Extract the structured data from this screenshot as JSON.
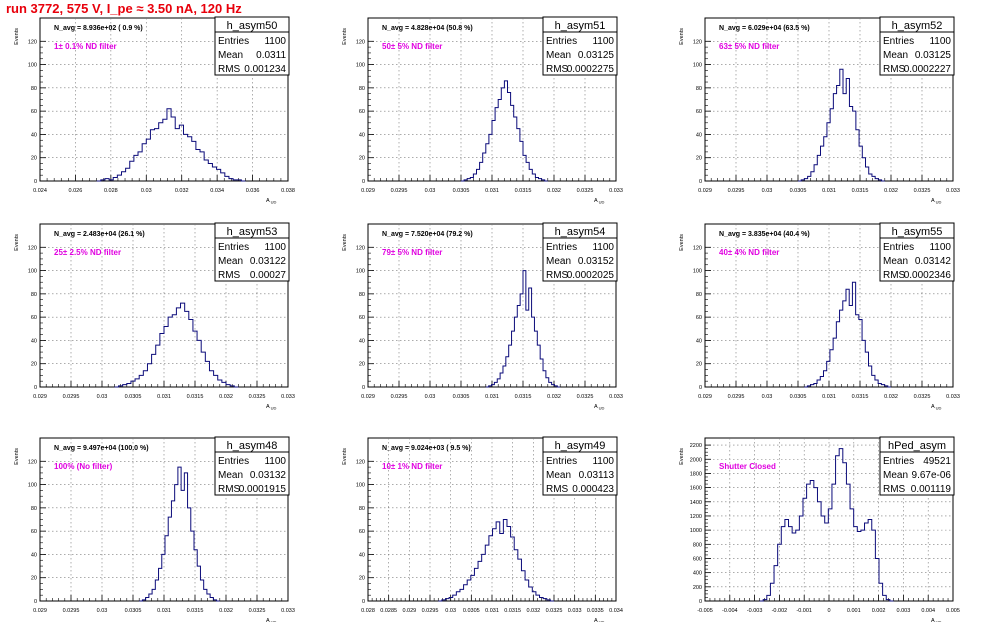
{
  "page_title": "run 3772,   575 V, I_pe ≈ 3.50 nA, 120 Hz",
  "colors": {
    "hist": "#0b0b7a",
    "magenta": "#e000e0",
    "title": "#e8000b",
    "grid": "#7a7a7a"
  },
  "stats_labels": {
    "entries": "Entries",
    "mean": "Mean",
    "rms": "RMS"
  },
  "xlabel": "A_UD",
  "ylabel": "Events",
  "chart_data": [
    {
      "type": "bar",
      "name": "h_asym50",
      "navg": "N_avg = 8.936e+02 ( 0.9 %)",
      "filter": "1± 0.1% ND filter",
      "entries": "1100",
      "mean": "0.0311",
      "rms": "0.001234",
      "xlim": [
        0.024,
        0.038
      ],
      "ylim": [
        0,
        140
      ],
      "xticks": [
        0.024,
        0.026,
        0.028,
        0.03,
        0.032,
        0.034,
        0.036,
        0.038
      ],
      "xtick_labels": [
        "0.024",
        "0.026",
        "0.028",
        "0.03",
        "0.032",
        "0.034",
        "0.036",
        "0.038"
      ],
      "yticks": [
        0,
        20,
        40,
        60,
        80,
        100,
        120
      ],
      "yvals": [
        0,
        1,
        2,
        1,
        3,
        5,
        8,
        11,
        17,
        22,
        25,
        32,
        36,
        44,
        45,
        50,
        53,
        62,
        55,
        45,
        48,
        40,
        38,
        34,
        27,
        25,
        18,
        15,
        12,
        10,
        7,
        4,
        2,
        1,
        1,
        0
      ],
      "xrange": [
        0.0272,
        0.0356
      ]
    },
    {
      "type": "bar",
      "name": "h_asym51",
      "navg": "N_avg = 4.828e+04 (50.8 %)",
      "filter": "50± 5% ND filter",
      "entries": "1100",
      "mean": "0.03125",
      "rms": "0.0002275",
      "xlim": [
        0.029,
        0.033
      ],
      "ylim": [
        0,
        140
      ],
      "xticks": [
        0.029,
        0.0295,
        0.03,
        0.0305,
        0.031,
        0.0315,
        0.032,
        0.0325,
        0.033
      ],
      "xtick_labels": [
        "0.029",
        "0.0295",
        "0.03",
        "0.0305",
        "0.031",
        "0.0315",
        "0.032",
        "0.0325",
        "0.033"
      ],
      "yticks": [
        0,
        20,
        40,
        60,
        80,
        100,
        120
      ],
      "yvals": [
        0,
        1,
        2,
        3,
        6,
        10,
        16,
        24,
        32,
        40,
        52,
        63,
        70,
        80,
        86,
        76,
        65,
        55,
        45,
        34,
        22,
        16,
        10,
        6,
        3,
        2,
        1,
        0
      ],
      "xrange": [
        0.0305,
        0.0319
      ]
    },
    {
      "type": "bar",
      "name": "h_asym52",
      "navg": "N_avg = 6.029e+04 (63.5 %)",
      "filter": "63± 5% ND filter",
      "entries": "1100",
      "mean": "0.03125",
      "rms": "0.0002227",
      "xlim": [
        0.029,
        0.033
      ],
      "ylim": [
        0,
        140
      ],
      "xticks": [
        0.029,
        0.0295,
        0.03,
        0.0305,
        0.031,
        0.0315,
        0.032,
        0.0325,
        0.033
      ],
      "xtick_labels": [
        "0.029",
        "0.0295",
        "0.03",
        "0.0305",
        "0.031",
        "0.0315",
        "0.032",
        "0.0325",
        "0.033"
      ],
      "yticks": [
        0,
        20,
        40,
        60,
        80,
        100,
        120
      ],
      "yvals": [
        0,
        1,
        2,
        4,
        8,
        14,
        22,
        30,
        38,
        50,
        62,
        75,
        82,
        96,
        75,
        88,
        64,
        60,
        44,
        30,
        20,
        12,
        6,
        4,
        2,
        1,
        0
      ],
      "xrange": [
        0.0305,
        0.0319
      ]
    },
    {
      "type": "bar",
      "name": "h_asym53",
      "navg": "N_avg = 2.483e+04 (26.1 %)",
      "filter": "25± 2.5% ND filter",
      "entries": "1100",
      "mean": "0.03122",
      "rms": "0.00027",
      "xlim": [
        0.029,
        0.033
      ],
      "ylim": [
        0,
        140
      ],
      "xticks": [
        0.029,
        0.0295,
        0.03,
        0.0305,
        0.031,
        0.0315,
        0.032,
        0.0325,
        0.033
      ],
      "xtick_labels": [
        "0.029",
        "0.0295",
        "0.03",
        "0.0305",
        "0.031",
        "0.0315",
        "0.032",
        "0.0325",
        "0.033"
      ],
      "yticks": [
        0,
        20,
        40,
        60,
        80,
        100,
        120
      ],
      "yvals": [
        0,
        1,
        2,
        3,
        5,
        7,
        10,
        14,
        20,
        28,
        36,
        46,
        52,
        60,
        62,
        68,
        72,
        65,
        58,
        48,
        40,
        30,
        22,
        14,
        10,
        6,
        4,
        2,
        1,
        0
      ],
      "xrange": [
        0.0302,
        0.0322
      ]
    },
    {
      "type": "bar",
      "name": "h_asym54",
      "navg": "N_avg = 7.520e+04 (79.2 %)",
      "filter": "79± 5% ND filter",
      "entries": "1100",
      "mean": "0.03152",
      "rms": "0.0002025",
      "xlim": [
        0.029,
        0.033
      ],
      "ylim": [
        0,
        140
      ],
      "xticks": [
        0.029,
        0.0295,
        0.03,
        0.0305,
        0.031,
        0.0315,
        0.032,
        0.0325,
        0.033
      ],
      "xtick_labels": [
        "0.029",
        "0.0295",
        "0.03",
        "0.0305",
        "0.031",
        "0.0315",
        "0.032",
        "0.0325",
        "0.033"
      ],
      "yticks": [
        0,
        20,
        40,
        60,
        80,
        100,
        120
      ],
      "yvals": [
        0,
        1,
        2,
        4,
        7,
        12,
        18,
        26,
        36,
        48,
        60,
        70,
        80,
        100,
        66,
        85,
        60,
        48,
        36,
        24,
        14,
        8,
        4,
        2,
        1,
        0
      ],
      "xrange": [
        0.0309,
        0.0321
      ]
    },
    {
      "type": "bar",
      "name": "h_asym55",
      "navg": "N_avg = 3.835e+04 (40.4 %)",
      "filter": "40± 4% ND filter",
      "entries": "1100",
      "mean": "0.03142",
      "rms": "0.0002346",
      "xlim": [
        0.029,
        0.033
      ],
      "ylim": [
        0,
        140
      ],
      "xticks": [
        0.029,
        0.0295,
        0.03,
        0.0305,
        0.031,
        0.0315,
        0.032,
        0.0325,
        0.033
      ],
      "xtick_labels": [
        "0.029",
        "0.0295",
        "0.03",
        "0.0305",
        "0.031",
        "0.0315",
        "0.032",
        "0.0325",
        "0.033"
      ],
      "yticks": [
        0,
        20,
        40,
        60,
        80,
        100,
        120
      ],
      "yvals": [
        0,
        1,
        2,
        3,
        6,
        9,
        14,
        22,
        32,
        42,
        56,
        66,
        74,
        84,
        70,
        90,
        62,
        58,
        40,
        30,
        18,
        10,
        6,
        3,
        2,
        1,
        0
      ],
      "xrange": [
        0.0306,
        0.032
      ]
    },
    {
      "type": "bar",
      "name": "h_asym48",
      "navg": "N_avg = 9.497e+04 (100.0 %)",
      "filter": "100% (No filter)",
      "entries": "1100",
      "mean": "0.03132",
      "rms": "0.0001915",
      "xlim": [
        0.029,
        0.033
      ],
      "ylim": [
        0,
        140
      ],
      "xticks": [
        0.029,
        0.0295,
        0.03,
        0.0305,
        0.031,
        0.0315,
        0.032,
        0.0325,
        0.033
      ],
      "xtick_labels": [
        "0.029",
        "0.0295",
        "0.03",
        "0.0305",
        "0.031",
        "0.0315",
        "0.032",
        "0.0325",
        "0.033"
      ],
      "yticks": [
        0,
        20,
        40,
        60,
        80,
        100,
        120
      ],
      "yvals": [
        0,
        1,
        3,
        6,
        10,
        18,
        28,
        40,
        56,
        72,
        86,
        100,
        115,
        95,
        110,
        80,
        60,
        44,
        30,
        18,
        10,
        6,
        3,
        1,
        0
      ],
      "xrange": [
        0.0306,
        0.0319
      ]
    },
    {
      "type": "bar",
      "name": "h_asym49",
      "navg": "N_avg = 9.024e+03 ( 9.5 %)",
      "filter": "10± 1% ND filter",
      "entries": "1100",
      "mean": "0.03113",
      "rms": "0.000423",
      "xlim": [
        0.028,
        0.034
      ],
      "ylim": [
        0,
        140
      ],
      "xticks": [
        0.028,
        0.0285,
        0.029,
        0.0295,
        0.03,
        0.0305,
        0.031,
        0.0315,
        0.032,
        0.0325,
        0.033,
        0.0335,
        0.034
      ],
      "xtick_labels": [
        "0.028",
        "0.0285",
        "0.029",
        "0.0295",
        "0.03",
        "0.0305",
        "0.031",
        "0.0315",
        "0.032",
        "0.0325",
        "0.033",
        "0.0335",
        "0.034"
      ],
      "yticks": [
        0,
        20,
        40,
        60,
        80,
        100,
        120
      ],
      "yvals": [
        0,
        1,
        2,
        3,
        5,
        8,
        10,
        14,
        18,
        22,
        28,
        34,
        40,
        48,
        56,
        62,
        68,
        58,
        70,
        64,
        55,
        44,
        36,
        26,
        18,
        12,
        8,
        5,
        3,
        2,
        1,
        0
      ],
      "xrange": [
        0.0297,
        0.0325
      ]
    },
    {
      "type": "bar",
      "name": "hPed_asym",
      "navg": "",
      "filter": "Shutter Closed",
      "entries": "49521",
      "mean": "9.67e-06",
      "rms": "0.001119",
      "xlim": [
        -0.005,
        0.005
      ],
      "ylim": [
        0,
        2300
      ],
      "xticks": [
        -0.005,
        -0.004,
        -0.003,
        -0.002,
        -0.001,
        0,
        0.001,
        0.002,
        0.003,
        0.004,
        0.005
      ],
      "xtick_labels": [
        "-0.005",
        "-0.004",
        "-0.003",
        "-0.002",
        "-0.001",
        "0",
        "0.001",
        "0.002",
        "0.003",
        "0.004",
        "0.005"
      ],
      "yticks": [
        0,
        200,
        400,
        600,
        800,
        1000,
        1200,
        1400,
        1600,
        1800,
        2000,
        2200
      ],
      "yvals": [
        0,
        20,
        80,
        250,
        500,
        800,
        1050,
        1150,
        1050,
        960,
        1000,
        1200,
        1450,
        1650,
        1700,
        1600,
        1400,
        1200,
        1100,
        1300,
        1650,
        2050,
        2150,
        1950,
        1650,
        1300,
        1050,
        980,
        1000,
        1100,
        1150,
        1000,
        600,
        250,
        80,
        20,
        0
      ],
      "xrange": [
        -0.0028,
        0.0026
      ]
    }
  ]
}
